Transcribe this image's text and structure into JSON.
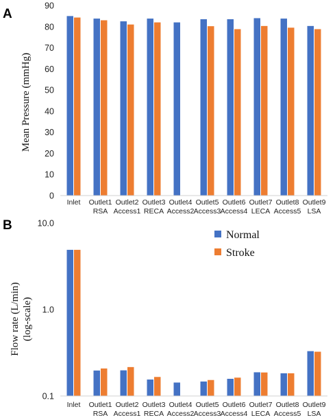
{
  "colors": {
    "normal": "#4472c4",
    "stroke": "#ed7d31"
  },
  "chart_data": [
    {
      "panel": "A",
      "type": "bar",
      "title": "",
      "xlabel": "",
      "ylabel": "Mean Pressure (mmHg)",
      "ylim": [
        0,
        90
      ],
      "yticks": [
        "0",
        "10",
        "20",
        "30",
        "40",
        "50",
        "60",
        "70",
        "80",
        "90"
      ],
      "grid": false,
      "categories": [
        [
          "Inlet"
        ],
        [
          "Outlet1",
          "RSA"
        ],
        [
          "Outlet2",
          "Access1"
        ],
        [
          "Outlet3",
          "RECA"
        ],
        [
          "Outlet4",
          "Access2"
        ],
        [
          "Outlet5",
          "Access3"
        ],
        [
          "Outlet6",
          "Access4"
        ],
        [
          "Outlet7",
          "LECA"
        ],
        [
          "Outlet8",
          "Access5"
        ],
        [
          "Outlet9",
          "LSA"
        ]
      ],
      "series": [
        {
          "name": "Normal",
          "values": [
            85,
            83.8,
            82.5,
            83.8,
            82,
            83.5,
            83.5,
            84,
            83.8,
            80.3
          ]
        },
        {
          "name": "Stroke",
          "values": [
            84.3,
            83,
            81,
            82,
            null,
            80.2,
            78.8,
            80.3,
            79.5,
            78.8
          ]
        }
      ]
    },
    {
      "panel": "B",
      "type": "bar",
      "title": "",
      "xlabel": "",
      "ylabel": "Flow rate (L/min) (log-scale)",
      "ylabel_lines": [
        "Flow rate (L/min)",
        "(log-scale)"
      ],
      "yscale": "log",
      "ylim": [
        0.1,
        10
      ],
      "yticks": [
        "0.1",
        "1.0",
        "10.0"
      ],
      "grid": false,
      "legend": {
        "placement": "top-right",
        "entries": [
          "Normal",
          "Stroke"
        ]
      },
      "categories": [
        [
          "Inlet"
        ],
        [
          "Outlet1",
          "RSA"
        ],
        [
          "Outlet2",
          "Access1"
        ],
        [
          "Outlet3",
          "RECA"
        ],
        [
          "Outlet4",
          "Access2"
        ],
        [
          "Outlet5",
          "Access3"
        ],
        [
          "Outlet6",
          "Access4"
        ],
        [
          "Outlet7",
          "LECA"
        ],
        [
          "Outlet8",
          "Access5"
        ],
        [
          "Outlet9",
          "LSA"
        ]
      ],
      "series": [
        {
          "name": "Normal",
          "values": [
            4.9,
            0.197,
            0.198,
            0.155,
            0.143,
            0.147,
            0.158,
            0.188,
            0.183,
            0.33
          ]
        },
        {
          "name": "Stroke",
          "values": [
            4.9,
            0.208,
            0.216,
            0.166,
            null,
            0.153,
            0.163,
            0.187,
            0.183,
            0.325
          ]
        }
      ]
    }
  ]
}
